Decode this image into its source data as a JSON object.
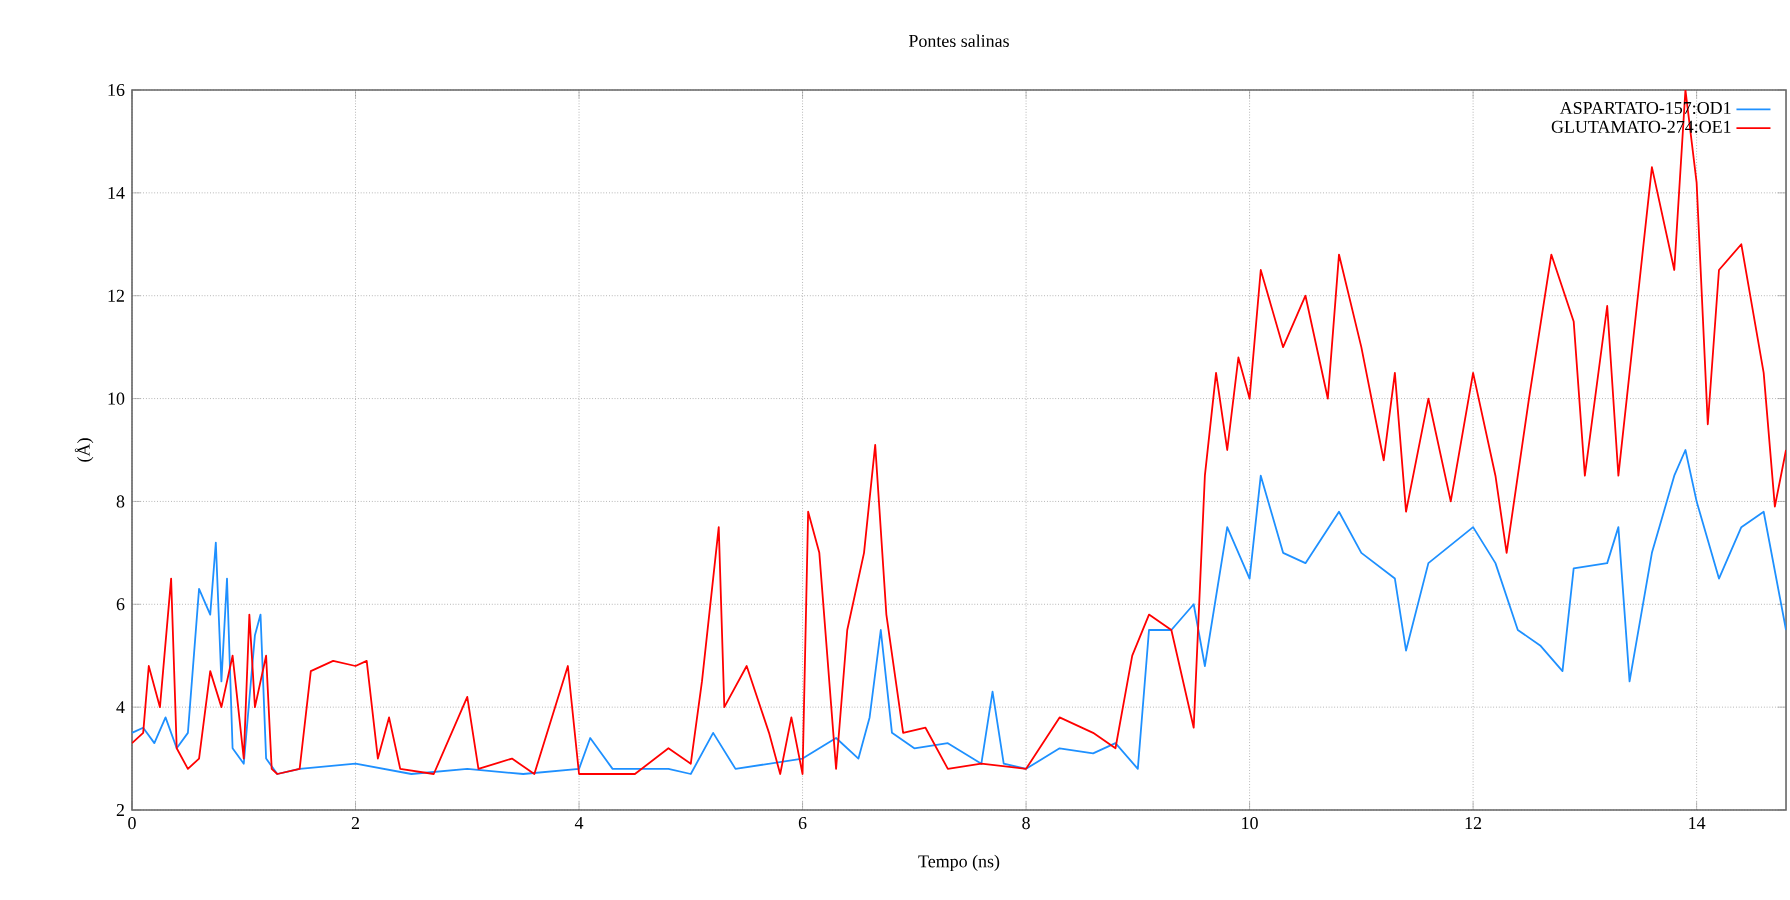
{
  "chart_data": {
    "type": "line",
    "title": "Pontes salinas",
    "xlabel": "Tempo (ns)",
    "ylabel": "(Å)",
    "xlim": [
      0,
      14.8
    ],
    "ylim": [
      2,
      16
    ],
    "xticks": [
      0,
      2,
      4,
      6,
      8,
      10,
      12,
      14
    ],
    "yticks": [
      2,
      4,
      6,
      8,
      10,
      12,
      14,
      16
    ],
    "grid": true,
    "legend": "top right",
    "marker": "none",
    "line_style": "solid",
    "series": [
      {
        "name": "ASPARTATO-157:OD1",
        "color": "#1e90ff",
        "x": [
          0,
          0.1,
          0.2,
          0.3,
          0.4,
          0.5,
          0.6,
          0.7,
          0.75,
          0.8,
          0.85,
          0.9,
          1.0,
          1.1,
          1.15,
          1.2,
          1.3,
          1.5,
          2.0,
          2.5,
          3.0,
          3.5,
          4.0,
          4.1,
          4.3,
          4.8,
          5.0,
          5.2,
          5.4,
          6.0,
          6.3,
          6.5,
          6.6,
          6.7,
          6.8,
          7.0,
          7.3,
          7.6,
          7.7,
          7.8,
          8.0,
          8.3,
          8.6,
          8.8,
          9.0,
          9.1,
          9.3,
          9.5,
          9.6,
          9.8,
          10.0,
          10.1,
          10.3,
          10.5,
          10.8,
          11.0,
          11.3,
          11.4,
          11.6,
          12.0,
          12.2,
          12.4,
          12.6,
          12.8,
          12.9,
          13.2,
          13.3,
          13.4,
          13.6,
          13.8,
          13.9,
          14.0,
          14.2,
          14.4,
          14.6,
          14.8
        ],
        "values": [
          3.5,
          3.6,
          3.3,
          3.8,
          3.2,
          3.5,
          6.3,
          5.8,
          7.2,
          4.5,
          6.5,
          3.2,
          2.9,
          5.4,
          5.8,
          3.0,
          2.7,
          2.8,
          2.9,
          2.7,
          2.8,
          2.7,
          2.8,
          3.4,
          2.8,
          2.8,
          2.7,
          3.5,
          2.8,
          3.0,
          3.4,
          3.0,
          3.8,
          5.5,
          3.5,
          3.2,
          3.3,
          2.9,
          4.3,
          2.9,
          2.8,
          3.2,
          3.1,
          3.3,
          2.8,
          5.5,
          5.5,
          6.0,
          4.8,
          7.5,
          6.5,
          8.5,
          7.0,
          6.8,
          7.8,
          7.0,
          6.5,
          5.1,
          6.8,
          7.5,
          6.8,
          5.5,
          5.2,
          4.7,
          6.7,
          6.8,
          7.5,
          4.5,
          7.0,
          8.5,
          9.0,
          8.0,
          6.5,
          7.5,
          7.8,
          5.5
        ]
      },
      {
        "name": "GLUTAMATO-274:OE1",
        "color": "#ff0000",
        "x": [
          0,
          0.1,
          0.15,
          0.25,
          0.35,
          0.4,
          0.5,
          0.6,
          0.7,
          0.8,
          0.9,
          1.0,
          1.05,
          1.1,
          1.2,
          1.25,
          1.3,
          1.5,
          1.6,
          1.8,
          2.0,
          2.1,
          2.2,
          2.3,
          2.4,
          2.7,
          3.0,
          3.1,
          3.4,
          3.6,
          3.9,
          4.0,
          4.5,
          4.8,
          5.0,
          5.1,
          5.25,
          5.3,
          5.5,
          5.7,
          5.8,
          5.9,
          6.0,
          6.05,
          6.15,
          6.3,
          6.4,
          6.55,
          6.65,
          6.75,
          6.9,
          7.1,
          7.3,
          7.6,
          8.0,
          8.3,
          8.6,
          8.8,
          8.95,
          9.1,
          9.3,
          9.5,
          9.6,
          9.7,
          9.8,
          9.9,
          10.0,
          10.1,
          10.3,
          10.5,
          10.7,
          10.8,
          11.0,
          11.2,
          11.3,
          11.4,
          11.6,
          11.8,
          12.0,
          12.2,
          12.3,
          12.5,
          12.7,
          12.9,
          13.0,
          13.2,
          13.3,
          13.5,
          13.6,
          13.8,
          13.9,
          14.0,
          14.1,
          14.2,
          14.4,
          14.6,
          14.7,
          14.8
        ],
        "values": [
          3.3,
          3.5,
          4.8,
          4.0,
          6.5,
          3.2,
          2.8,
          3.0,
          4.7,
          4.0,
          5.0,
          3.0,
          5.8,
          4.0,
          5.0,
          2.8,
          2.7,
          2.8,
          4.7,
          4.9,
          4.8,
          4.9,
          3.0,
          3.8,
          2.8,
          2.7,
          4.2,
          2.8,
          3.0,
          2.7,
          4.8,
          2.7,
          2.7,
          3.2,
          2.9,
          4.5,
          7.5,
          4.0,
          4.8,
          3.5,
          2.7,
          3.8,
          2.7,
          7.8,
          7.0,
          2.8,
          5.5,
          7.0,
          9.1,
          5.8,
          3.5,
          3.6,
          2.8,
          2.9,
          2.8,
          3.8,
          3.5,
          3.2,
          5.0,
          5.8,
          5.5,
          3.6,
          8.5,
          10.5,
          9.0,
          10.8,
          10.0,
          12.5,
          11.0,
          12.0,
          10.0,
          12.8,
          11.0,
          8.8,
          10.5,
          7.8,
          10.0,
          8.0,
          10.5,
          8.5,
          7.0,
          10.0,
          12.8,
          11.5,
          8.5,
          11.8,
          8.5,
          12.5,
          14.5,
          12.5,
          16.0,
          14.2,
          9.5,
          12.5,
          13.0,
          10.5,
          7.9,
          9.0
        ]
      }
    ]
  }
}
